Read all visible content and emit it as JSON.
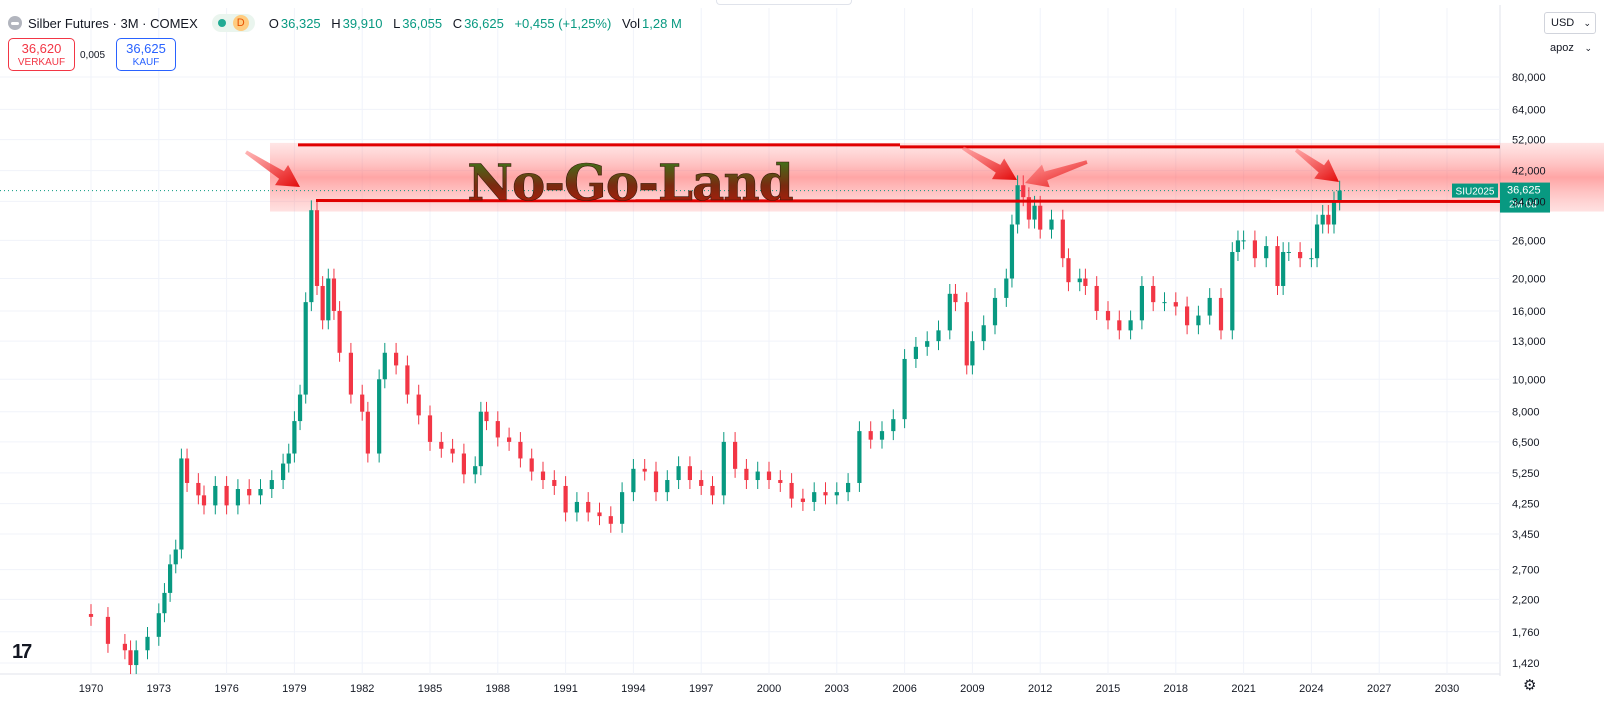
{
  "header": {
    "symbol_title": "Silber Futures · 3M · COMEX",
    "interval_badge": "D",
    "ohlc": {
      "o_label": "O",
      "o": "36,325",
      "h_label": "H",
      "h": "39,910",
      "l_label": "L",
      "l": "36,055",
      "c_label": "C",
      "c": "36,625",
      "change": "+0,455 (+1,25%)",
      "vol_label": "Vol",
      "vol": "1,28 M"
    }
  },
  "trade": {
    "sell_price": "36,620",
    "sell_label": "VERKAUF",
    "spread": "0,005",
    "buy_price": "36,625",
    "buy_label": "KAUF"
  },
  "scale": {
    "currency": "USD",
    "unit": "apoz"
  },
  "price_tag": {
    "contract": "SIU2025",
    "price": "36,625",
    "countdown": "2M 0d"
  },
  "colors": {
    "up": "#089981",
    "down": "#f23645",
    "annotation": "#e00000",
    "text_green": "#0c8c2c"
  },
  "icons": {
    "tv_logo": "tradingview-logo-icon",
    "settings": "gear-icon"
  },
  "chart_data": {
    "type": "candlestick",
    "interval": "3M",
    "y_scale": "log",
    "ylim": [
      1.3,
      95
    ],
    "xlim": [
      1968.5,
      2031.5
    ],
    "y_ticks": [
      "80,000",
      "64,000",
      "52,000",
      "42,000",
      "34,000",
      "26,000",
      "20,000",
      "16,000",
      "13,000",
      "10,000",
      "8,000",
      "6,500",
      "5,250",
      "4,250",
      "3,450",
      "2,700",
      "2,200",
      "1,760",
      "1,420"
    ],
    "x_ticks": [
      "1970",
      "1973",
      "1976",
      "1979",
      "1982",
      "1985",
      "1988",
      "1991",
      "1994",
      "1997",
      "2000",
      "2003",
      "2006",
      "2009",
      "2012",
      "2015",
      "2018",
      "2021",
      "2024",
      "2027",
      "2030"
    ],
    "series": [
      {
        "t": 1970.0,
        "c": 1.95
      },
      {
        "t": 1970.75,
        "c": 1.62
      },
      {
        "t": 1971.5,
        "c": 1.55
      },
      {
        "t": 1971.75,
        "c": 1.4
      },
      {
        "t": 1972.0,
        "c": 1.55
      },
      {
        "t": 1972.5,
        "c": 1.7
      },
      {
        "t": 1973.0,
        "c": 2.0
      },
      {
        "t": 1973.25,
        "c": 2.3
      },
      {
        "t": 1973.5,
        "c": 2.8
      },
      {
        "t": 1973.75,
        "c": 3.1
      },
      {
        "t": 1974.0,
        "c": 5.8
      },
      {
        "t": 1974.25,
        "c": 4.9
      },
      {
        "t": 1974.75,
        "c": 4.5
      },
      {
        "t": 1975.0,
        "c": 4.2
      },
      {
        "t": 1975.5,
        "c": 4.8
      },
      {
        "t": 1976.0,
        "c": 4.2
      },
      {
        "t": 1976.5,
        "c": 4.7
      },
      {
        "t": 1977.0,
        "c": 4.5
      },
      {
        "t": 1977.5,
        "c": 4.7
      },
      {
        "t": 1978.0,
        "c": 5.0
      },
      {
        "t": 1978.5,
        "c": 5.6
      },
      {
        "t": 1978.75,
        "c": 6.0
      },
      {
        "t": 1979.0,
        "c": 7.5
      },
      {
        "t": 1979.25,
        "c": 9.0
      },
      {
        "t": 1979.5,
        "c": 17.0
      },
      {
        "t": 1979.75,
        "c": 32.0
      },
      {
        "t": 1980.0,
        "c": 19.0
      },
      {
        "t": 1980.25,
        "c": 15.0
      },
      {
        "t": 1980.5,
        "c": 20.0
      },
      {
        "t": 1980.75,
        "c": 16.0
      },
      {
        "t": 1981.0,
        "c": 12.0
      },
      {
        "t": 1981.5,
        "c": 9.0
      },
      {
        "t": 1982.0,
        "c": 8.0
      },
      {
        "t": 1982.25,
        "c": 6.0
      },
      {
        "t": 1982.75,
        "c": 10.0
      },
      {
        "t": 1983.0,
        "c": 12.0
      },
      {
        "t": 1983.5,
        "c": 11.0
      },
      {
        "t": 1984.0,
        "c": 9.0
      },
      {
        "t": 1984.5,
        "c": 7.8
      },
      {
        "t": 1985.0,
        "c": 6.5
      },
      {
        "t": 1985.5,
        "c": 6.2
      },
      {
        "t": 1986.0,
        "c": 6.0
      },
      {
        "t": 1986.5,
        "c": 5.2
      },
      {
        "t": 1987.0,
        "c": 5.5
      },
      {
        "t": 1987.25,
        "c": 8.0
      },
      {
        "t": 1987.5,
        "c": 7.5
      },
      {
        "t": 1988.0,
        "c": 6.7
      },
      {
        "t": 1988.5,
        "c": 6.5
      },
      {
        "t": 1989.0,
        "c": 5.8
      },
      {
        "t": 1989.5,
        "c": 5.3
      },
      {
        "t": 1990.0,
        "c": 5.0
      },
      {
        "t": 1990.5,
        "c": 4.8
      },
      {
        "t": 1991.0,
        "c": 4.0
      },
      {
        "t": 1991.5,
        "c": 4.3
      },
      {
        "t": 1992.0,
        "c": 4.0
      },
      {
        "t": 1992.5,
        "c": 3.9
      },
      {
        "t": 1993.0,
        "c": 3.7
      },
      {
        "t": 1993.5,
        "c": 4.6
      },
      {
        "t": 1994.0,
        "c": 5.4
      },
      {
        "t": 1994.5,
        "c": 5.3
      },
      {
        "t": 1995.0,
        "c": 4.6
      },
      {
        "t": 1995.5,
        "c": 5.0
      },
      {
        "t": 1996.0,
        "c": 5.5
      },
      {
        "t": 1996.5,
        "c": 5.0
      },
      {
        "t": 1997.0,
        "c": 4.8
      },
      {
        "t": 1997.5,
        "c": 4.5
      },
      {
        "t": 1998.0,
        "c": 6.5
      },
      {
        "t": 1998.5,
        "c": 5.4
      },
      {
        "t": 1999.0,
        "c": 5.0
      },
      {
        "t": 1999.5,
        "c": 5.3
      },
      {
        "t": 2000.0,
        "c": 5.0
      },
      {
        "t": 2000.5,
        "c": 4.9
      },
      {
        "t": 2001.0,
        "c": 4.4
      },
      {
        "t": 2001.5,
        "c": 4.3
      },
      {
        "t": 2002.0,
        "c": 4.6
      },
      {
        "t": 2002.5,
        "c": 4.5
      },
      {
        "t": 2003.0,
        "c": 4.6
      },
      {
        "t": 2003.5,
        "c": 4.9
      },
      {
        "t": 2004.0,
        "c": 7.0
      },
      {
        "t": 2004.5,
        "c": 6.6
      },
      {
        "t": 2005.0,
        "c": 7.0
      },
      {
        "t": 2005.5,
        "c": 7.6
      },
      {
        "t": 2006.0,
        "c": 11.5
      },
      {
        "t": 2006.5,
        "c": 12.5
      },
      {
        "t": 2007.0,
        "c": 13.0
      },
      {
        "t": 2007.5,
        "c": 14.0
      },
      {
        "t": 2008.0,
        "c": 18.0
      },
      {
        "t": 2008.25,
        "c": 17.0
      },
      {
        "t": 2008.75,
        "c": 11.0
      },
      {
        "t": 2009.0,
        "c": 13.0
      },
      {
        "t": 2009.5,
        "c": 14.5
      },
      {
        "t": 2010.0,
        "c": 17.5
      },
      {
        "t": 2010.5,
        "c": 20.0
      },
      {
        "t": 2010.75,
        "c": 29.0
      },
      {
        "t": 2011.0,
        "c": 38.0
      },
      {
        "t": 2011.25,
        "c": 35.0
      },
      {
        "t": 2011.5,
        "c": 30.0
      },
      {
        "t": 2011.75,
        "c": 33.0
      },
      {
        "t": 2012.0,
        "c": 28.0
      },
      {
        "t": 2012.5,
        "c": 30.0
      },
      {
        "t": 2013.0,
        "c": 23.0
      },
      {
        "t": 2013.25,
        "c": 19.5
      },
      {
        "t": 2013.75,
        "c": 20.0
      },
      {
        "t": 2014.0,
        "c": 19.0
      },
      {
        "t": 2014.5,
        "c": 16.0
      },
      {
        "t": 2015.0,
        "c": 15.0
      },
      {
        "t": 2015.5,
        "c": 14.0
      },
      {
        "t": 2016.0,
        "c": 15.0
      },
      {
        "t": 2016.5,
        "c": 19.0
      },
      {
        "t": 2017.0,
        "c": 17.0
      },
      {
        "t": 2017.5,
        "c": 17.0
      },
      {
        "t": 2018.0,
        "c": 16.5
      },
      {
        "t": 2018.5,
        "c": 14.5
      },
      {
        "t": 2019.0,
        "c": 15.5
      },
      {
        "t": 2019.5,
        "c": 17.5
      },
      {
        "t": 2020.0,
        "c": 14.0
      },
      {
        "t": 2020.5,
        "c": 24.0
      },
      {
        "t": 2020.75,
        "c": 26.0
      },
      {
        "t": 2021.0,
        "c": 26.0
      },
      {
        "t": 2021.5,
        "c": 23.0
      },
      {
        "t": 2022.0,
        "c": 25.0
      },
      {
        "t": 2022.5,
        "c": 19.0
      },
      {
        "t": 2022.75,
        "c": 24.0
      },
      {
        "t": 2023.0,
        "c": 24.0
      },
      {
        "t": 2023.5,
        "c": 23.0
      },
      {
        "t": 2024.0,
        "c": 23.0
      },
      {
        "t": 2024.25,
        "c": 29.0
      },
      {
        "t": 2024.5,
        "c": 31.0
      },
      {
        "t": 2024.75,
        "c": 29.0
      },
      {
        "t": 2025.0,
        "c": 34.0
      },
      {
        "t": 2025.25,
        "c": 36.625
      }
    ],
    "annotations": {
      "zone_label": "No-Go-Land",
      "resistance_upper": 49.8,
      "resistance_lower": 34.2,
      "current_price": 36.625
    }
  }
}
